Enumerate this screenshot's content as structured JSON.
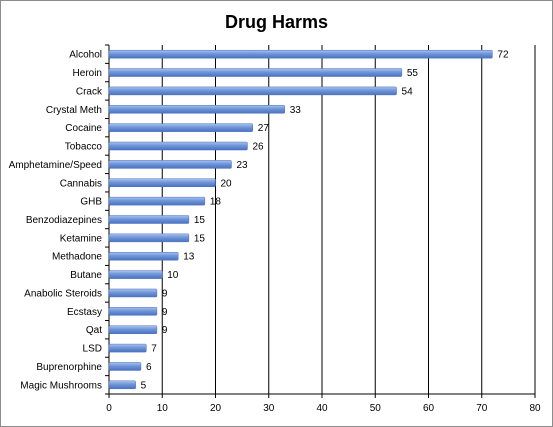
{
  "chart_data": {
    "type": "bar",
    "orientation": "horizontal",
    "title": "Drug Harms",
    "xlabel": "",
    "ylabel": "",
    "categories": [
      "Alcohol",
      "Heroin",
      "Crack",
      "Crystal Meth",
      "Cocaine",
      "Tobacco",
      "Amphetamine/Speed",
      "Cannabis",
      "GHB",
      "Benzodiazepines",
      "Ketamine",
      "Methadone",
      "Butane",
      "Anabolic Steroids",
      "Ecstasy",
      "Qat",
      "LSD",
      "Buprenorphine",
      "Magic Mushrooms"
    ],
    "values": [
      72,
      55,
      54,
      33,
      27,
      26,
      23,
      20,
      18,
      15,
      15,
      13,
      10,
      9,
      9,
      9,
      7,
      6,
      5
    ],
    "xlim": [
      0,
      80
    ],
    "xticks": [
      0,
      10,
      20,
      30,
      40,
      50,
      60,
      70,
      80
    ],
    "grid": "vertical",
    "legend": "none",
    "data_labels": true,
    "bar_color": "#6f95d8"
  }
}
